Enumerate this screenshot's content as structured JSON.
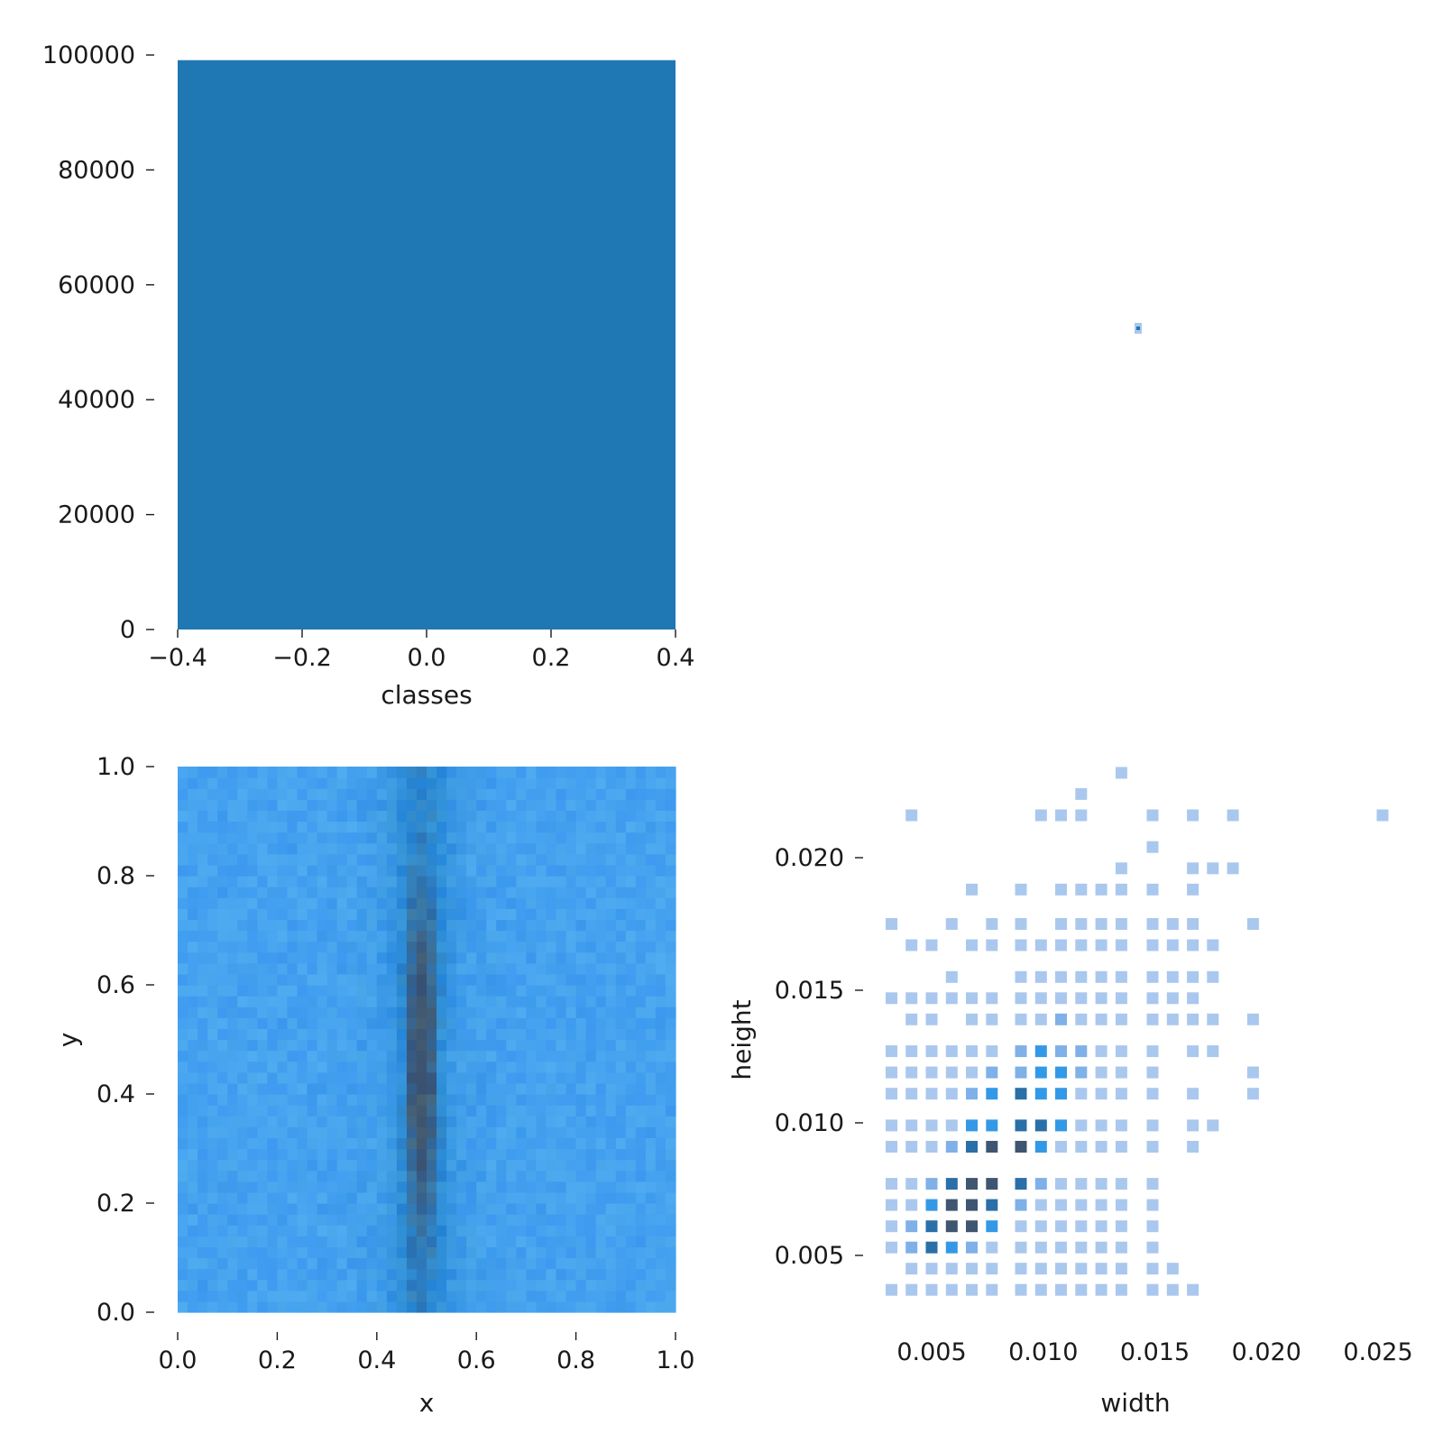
{
  "colors": {
    "bar": "#1f77b4",
    "heat_light": "#aac8ee",
    "heat_mid": "#3399e6",
    "heat_dark": "#3f5670",
    "axis": "#1a1a1a"
  },
  "chart_data": [
    {
      "id": "classes-hist",
      "type": "bar",
      "xlabel": "classes",
      "ylabel": "",
      "xlim": [
        -0.4,
        0.4
      ],
      "ylim": [
        0,
        100000
      ],
      "xticks": [
        "−0.4",
        "−0.2",
        "0.0",
        "0.2",
        "0.4"
      ],
      "xtick_values": [
        -0.4,
        -0.2,
        0.0,
        0.2,
        0.4
      ],
      "yticks": [
        "0",
        "20000",
        "40000",
        "60000",
        "80000",
        "100000"
      ],
      "ytick_values": [
        0,
        20000,
        40000,
        60000,
        80000,
        100000
      ],
      "categories": [
        "0"
      ],
      "bars": [
        {
          "x0": -0.4,
          "x1": 0.4,
          "value": 99100
        }
      ],
      "grid": false
    },
    {
      "id": "classes-width-point",
      "type": "scatter",
      "xlabel": "",
      "ylabel": "",
      "points": [
        {
          "x": 0.5,
          "y": 0.5
        }
      ],
      "grid": false
    },
    {
      "id": "xy-heatmap",
      "type": "heatmap",
      "xlabel": "x",
      "ylabel": "y",
      "xlim": [
        0,
        1
      ],
      "ylim": [
        0,
        1
      ],
      "xticks": [
        "0.0",
        "0.2",
        "0.4",
        "0.6",
        "0.8",
        "1.0"
      ],
      "xtick_values": [
        0,
        0.2,
        0.4,
        0.6,
        0.8,
        1.0
      ],
      "yticks": [
        "0.0",
        "0.2",
        "0.4",
        "0.6",
        "0.8",
        "1.0"
      ],
      "ytick_values": [
        0,
        0.2,
        0.4,
        0.6,
        0.8,
        1.0
      ],
      "bins": [
        50,
        50
      ],
      "density_profile": {
        "description_free": true,
        "center_x": 0.49,
        "peak_y": 0.45,
        "band_ymin": 0.0,
        "band_ymax": 1.0
      },
      "grid": false
    },
    {
      "id": "width-height-hist2d",
      "type": "heatmap",
      "xlabel": "width",
      "ylabel": "height",
      "xlim": [
        0.0022,
        0.0265
      ],
      "ylim": [
        0.0028,
        0.0234
      ],
      "xticks": [
        "0.005",
        "0.010",
        "0.015",
        "0.020",
        "0.025"
      ],
      "xtick_values": [
        0.005,
        0.01,
        0.015,
        0.02,
        0.025
      ],
      "yticks": [
        "0.005",
        "0.010",
        "0.015",
        "0.020"
      ],
      "ytick_values": [
        0.005,
        0.01,
        0.015,
        0.02
      ],
      "cell_size": [
        0.00072,
        0.00045
      ],
      "cells": [
        [
          0.0032,
          0.0037,
          1
        ],
        [
          0.0041,
          0.0037,
          1
        ],
        [
          0.005,
          0.0037,
          1
        ],
        [
          0.0059,
          0.0037,
          1
        ],
        [
          0.0068,
          0.0037,
          1
        ],
        [
          0.0077,
          0.0037,
          1
        ],
        [
          0.009,
          0.0037,
          1
        ],
        [
          0.0099,
          0.0037,
          1
        ],
        [
          0.0108,
          0.0037,
          1
        ],
        [
          0.0117,
          0.0037,
          1
        ],
        [
          0.0126,
          0.0037,
          1
        ],
        [
          0.0135,
          0.0037,
          1
        ],
        [
          0.0149,
          0.0037,
          1
        ],
        [
          0.0158,
          0.0037,
          1
        ],
        [
          0.0167,
          0.0037,
          1
        ],
        [
          0.0041,
          0.0045,
          1
        ],
        [
          0.005,
          0.0045,
          1
        ],
        [
          0.0059,
          0.0045,
          1
        ],
        [
          0.0068,
          0.0045,
          1
        ],
        [
          0.0077,
          0.0045,
          1
        ],
        [
          0.009,
          0.0045,
          1
        ],
        [
          0.0099,
          0.0045,
          1
        ],
        [
          0.0108,
          0.0045,
          1
        ],
        [
          0.0117,
          0.0045,
          1
        ],
        [
          0.0126,
          0.0045,
          1
        ],
        [
          0.0135,
          0.0045,
          1
        ],
        [
          0.0149,
          0.0045,
          1
        ],
        [
          0.0158,
          0.0045,
          1
        ],
        [
          0.0032,
          0.0053,
          1
        ],
        [
          0.0041,
          0.0053,
          2
        ],
        [
          0.005,
          0.0053,
          4
        ],
        [
          0.0059,
          0.0053,
          3
        ],
        [
          0.0068,
          0.0053,
          2
        ],
        [
          0.0077,
          0.0053,
          1
        ],
        [
          0.009,
          0.0053,
          1
        ],
        [
          0.0099,
          0.0053,
          1
        ],
        [
          0.0108,
          0.0053,
          1
        ],
        [
          0.0117,
          0.0053,
          1
        ],
        [
          0.0126,
          0.0053,
          1
        ],
        [
          0.0135,
          0.0053,
          1
        ],
        [
          0.0149,
          0.0053,
          1
        ],
        [
          0.0032,
          0.0061,
          1
        ],
        [
          0.0041,
          0.0061,
          2
        ],
        [
          0.005,
          0.0061,
          4
        ],
        [
          0.0059,
          0.0061,
          5
        ],
        [
          0.0068,
          0.0061,
          5
        ],
        [
          0.0077,
          0.0061,
          3
        ],
        [
          0.009,
          0.0061,
          1
        ],
        [
          0.0099,
          0.0061,
          1
        ],
        [
          0.0108,
          0.0061,
          1
        ],
        [
          0.0117,
          0.0061,
          1
        ],
        [
          0.0126,
          0.0061,
          1
        ],
        [
          0.0135,
          0.0061,
          1
        ],
        [
          0.0149,
          0.0061,
          1
        ],
        [
          0.0032,
          0.0069,
          1
        ],
        [
          0.0041,
          0.0069,
          1
        ],
        [
          0.005,
          0.0069,
          3
        ],
        [
          0.0059,
          0.0069,
          5
        ],
        [
          0.0068,
          0.0069,
          5
        ],
        [
          0.0077,
          0.0069,
          4
        ],
        [
          0.009,
          0.0069,
          2
        ],
        [
          0.0099,
          0.0069,
          1
        ],
        [
          0.0108,
          0.0069,
          1
        ],
        [
          0.0117,
          0.0069,
          1
        ],
        [
          0.0126,
          0.0069,
          1
        ],
        [
          0.0135,
          0.0069,
          1
        ],
        [
          0.0149,
          0.0069,
          1
        ],
        [
          0.0032,
          0.0077,
          1
        ],
        [
          0.0041,
          0.0077,
          1
        ],
        [
          0.005,
          0.0077,
          2
        ],
        [
          0.0059,
          0.0077,
          4
        ],
        [
          0.0068,
          0.0077,
          5
        ],
        [
          0.0077,
          0.0077,
          5
        ],
        [
          0.009,
          0.0077,
          4
        ],
        [
          0.0099,
          0.0077,
          2
        ],
        [
          0.0108,
          0.0077,
          1
        ],
        [
          0.0117,
          0.0077,
          1
        ],
        [
          0.0126,
          0.0077,
          1
        ],
        [
          0.0135,
          0.0077,
          1
        ],
        [
          0.0149,
          0.0077,
          1
        ],
        [
          0.0032,
          0.0091,
          1
        ],
        [
          0.0041,
          0.0091,
          1
        ],
        [
          0.005,
          0.0091,
          1
        ],
        [
          0.0059,
          0.0091,
          2
        ],
        [
          0.0068,
          0.0091,
          4
        ],
        [
          0.0077,
          0.0091,
          5
        ],
        [
          0.009,
          0.0091,
          5
        ],
        [
          0.0099,
          0.0091,
          3
        ],
        [
          0.0108,
          0.0091,
          1
        ],
        [
          0.0117,
          0.0091,
          1
        ],
        [
          0.0126,
          0.0091,
          1
        ],
        [
          0.0135,
          0.0091,
          1
        ],
        [
          0.0149,
          0.0091,
          1
        ],
        [
          0.0167,
          0.0091,
          1
        ],
        [
          0.0032,
          0.0099,
          1
        ],
        [
          0.0041,
          0.0099,
          1
        ],
        [
          0.005,
          0.0099,
          1
        ],
        [
          0.0059,
          0.0099,
          1
        ],
        [
          0.0068,
          0.0099,
          3
        ],
        [
          0.0077,
          0.0099,
          3
        ],
        [
          0.009,
          0.0099,
          4
        ],
        [
          0.0099,
          0.0099,
          4
        ],
        [
          0.0108,
          0.0099,
          3
        ],
        [
          0.0117,
          0.0099,
          1
        ],
        [
          0.0126,
          0.0099,
          1
        ],
        [
          0.0135,
          0.0099,
          1
        ],
        [
          0.0149,
          0.0099,
          1
        ],
        [
          0.0167,
          0.0099,
          1
        ],
        [
          0.0176,
          0.0099,
          1
        ],
        [
          0.0032,
          0.0111,
          1
        ],
        [
          0.0041,
          0.0111,
          1
        ],
        [
          0.005,
          0.0111,
          1
        ],
        [
          0.0059,
          0.0111,
          1
        ],
        [
          0.0068,
          0.0111,
          2
        ],
        [
          0.0077,
          0.0111,
          3
        ],
        [
          0.009,
          0.0111,
          4
        ],
        [
          0.0099,
          0.0111,
          3
        ],
        [
          0.0108,
          0.0111,
          3
        ],
        [
          0.0117,
          0.0111,
          1
        ],
        [
          0.0126,
          0.0111,
          1
        ],
        [
          0.0135,
          0.0111,
          1
        ],
        [
          0.0149,
          0.0111,
          1
        ],
        [
          0.0167,
          0.0111,
          1
        ],
        [
          0.0194,
          0.0111,
          1
        ],
        [
          0.0032,
          0.0119,
          1
        ],
        [
          0.0041,
          0.0119,
          1
        ],
        [
          0.005,
          0.0119,
          1
        ],
        [
          0.0059,
          0.0119,
          1
        ],
        [
          0.0068,
          0.0119,
          1
        ],
        [
          0.0077,
          0.0119,
          2
        ],
        [
          0.009,
          0.0119,
          2
        ],
        [
          0.0099,
          0.0119,
          3
        ],
        [
          0.0108,
          0.0119,
          3
        ],
        [
          0.0117,
          0.0119,
          2
        ],
        [
          0.0126,
          0.0119,
          1
        ],
        [
          0.0135,
          0.0119,
          1
        ],
        [
          0.0149,
          0.0119,
          1
        ],
        [
          0.0194,
          0.0119,
          1
        ],
        [
          0.0032,
          0.0127,
          1
        ],
        [
          0.0041,
          0.0127,
          1
        ],
        [
          0.005,
          0.0127,
          1
        ],
        [
          0.0059,
          0.0127,
          1
        ],
        [
          0.0068,
          0.0127,
          1
        ],
        [
          0.0077,
          0.0127,
          1
        ],
        [
          0.009,
          0.0127,
          2
        ],
        [
          0.0099,
          0.0127,
          3
        ],
        [
          0.0108,
          0.0127,
          2
        ],
        [
          0.0117,
          0.0127,
          2
        ],
        [
          0.0126,
          0.0127,
          1
        ],
        [
          0.0135,
          0.0127,
          1
        ],
        [
          0.0149,
          0.0127,
          1
        ],
        [
          0.0167,
          0.0127,
          1
        ],
        [
          0.0176,
          0.0127,
          1
        ],
        [
          0.0041,
          0.0139,
          1
        ],
        [
          0.005,
          0.0139,
          1
        ],
        [
          0.0068,
          0.0139,
          1
        ],
        [
          0.0077,
          0.0139,
          1
        ],
        [
          0.009,
          0.0139,
          1
        ],
        [
          0.0099,
          0.0139,
          1
        ],
        [
          0.0108,
          0.0139,
          2
        ],
        [
          0.0117,
          0.0139,
          1
        ],
        [
          0.0126,
          0.0139,
          1
        ],
        [
          0.0135,
          0.0139,
          1
        ],
        [
          0.0149,
          0.0139,
          1
        ],
        [
          0.0158,
          0.0139,
          1
        ],
        [
          0.0167,
          0.0139,
          1
        ],
        [
          0.0176,
          0.0139,
          1
        ],
        [
          0.0194,
          0.0139,
          1
        ],
        [
          0.0032,
          0.0147,
          1
        ],
        [
          0.0041,
          0.0147,
          1
        ],
        [
          0.005,
          0.0147,
          1
        ],
        [
          0.0059,
          0.0147,
          1
        ],
        [
          0.0068,
          0.0147,
          1
        ],
        [
          0.0077,
          0.0147,
          1
        ],
        [
          0.009,
          0.0147,
          1
        ],
        [
          0.0099,
          0.0147,
          1
        ],
        [
          0.0108,
          0.0147,
          1
        ],
        [
          0.0117,
          0.0147,
          1
        ],
        [
          0.0126,
          0.0147,
          1
        ],
        [
          0.0135,
          0.0147,
          1
        ],
        [
          0.0149,
          0.0147,
          1
        ],
        [
          0.0158,
          0.0147,
          1
        ],
        [
          0.0167,
          0.0147,
          1
        ],
        [
          0.0059,
          0.0155,
          1
        ],
        [
          0.009,
          0.0155,
          1
        ],
        [
          0.0099,
          0.0155,
          1
        ],
        [
          0.0108,
          0.0155,
          1
        ],
        [
          0.0117,
          0.0155,
          1
        ],
        [
          0.0126,
          0.0155,
          1
        ],
        [
          0.0135,
          0.0155,
          1
        ],
        [
          0.0149,
          0.0155,
          1
        ],
        [
          0.0158,
          0.0155,
          1
        ],
        [
          0.0167,
          0.0155,
          1
        ],
        [
          0.0176,
          0.0155,
          1
        ],
        [
          0.0041,
          0.0167,
          1
        ],
        [
          0.005,
          0.0167,
          1
        ],
        [
          0.0068,
          0.0167,
          1
        ],
        [
          0.0077,
          0.0167,
          1
        ],
        [
          0.009,
          0.0167,
          1
        ],
        [
          0.0099,
          0.0167,
          1
        ],
        [
          0.0108,
          0.0167,
          1
        ],
        [
          0.0117,
          0.0167,
          1
        ],
        [
          0.0126,
          0.0167,
          1
        ],
        [
          0.0135,
          0.0167,
          1
        ],
        [
          0.0149,
          0.0167,
          1
        ],
        [
          0.0158,
          0.0167,
          1
        ],
        [
          0.0167,
          0.0167,
          1
        ],
        [
          0.0176,
          0.0167,
          1
        ],
        [
          0.0032,
          0.0175,
          1
        ],
        [
          0.0059,
          0.0175,
          1
        ],
        [
          0.0077,
          0.0175,
          1
        ],
        [
          0.009,
          0.0175,
          1
        ],
        [
          0.0108,
          0.0175,
          1
        ],
        [
          0.0117,
          0.0175,
          1
        ],
        [
          0.0126,
          0.0175,
          1
        ],
        [
          0.0135,
          0.0175,
          1
        ],
        [
          0.0149,
          0.0175,
          1
        ],
        [
          0.0158,
          0.0175,
          1
        ],
        [
          0.0167,
          0.0175,
          1
        ],
        [
          0.0194,
          0.0175,
          1
        ],
        [
          0.0068,
          0.0188,
          1
        ],
        [
          0.009,
          0.0188,
          1
        ],
        [
          0.0108,
          0.0188,
          1
        ],
        [
          0.0117,
          0.0188,
          1
        ],
        [
          0.0126,
          0.0188,
          1
        ],
        [
          0.0135,
          0.0188,
          1
        ],
        [
          0.0149,
          0.0188,
          1
        ],
        [
          0.0167,
          0.0188,
          1
        ],
        [
          0.0135,
          0.0196,
          1
        ],
        [
          0.0167,
          0.0196,
          1
        ],
        [
          0.0176,
          0.0196,
          1
        ],
        [
          0.0185,
          0.0196,
          1
        ],
        [
          0.0149,
          0.0204,
          1
        ],
        [
          0.0041,
          0.0216,
          1
        ],
        [
          0.0099,
          0.0216,
          1
        ],
        [
          0.0108,
          0.0216,
          1
        ],
        [
          0.0117,
          0.0216,
          1
        ],
        [
          0.0149,
          0.0216,
          1
        ],
        [
          0.0167,
          0.0216,
          1
        ],
        [
          0.0185,
          0.0216,
          1
        ],
        [
          0.0252,
          0.0216,
          1
        ],
        [
          0.0117,
          0.0224,
          1
        ],
        [
          0.0135,
          0.0232,
          1
        ]
      ],
      "grid": false
    }
  ]
}
